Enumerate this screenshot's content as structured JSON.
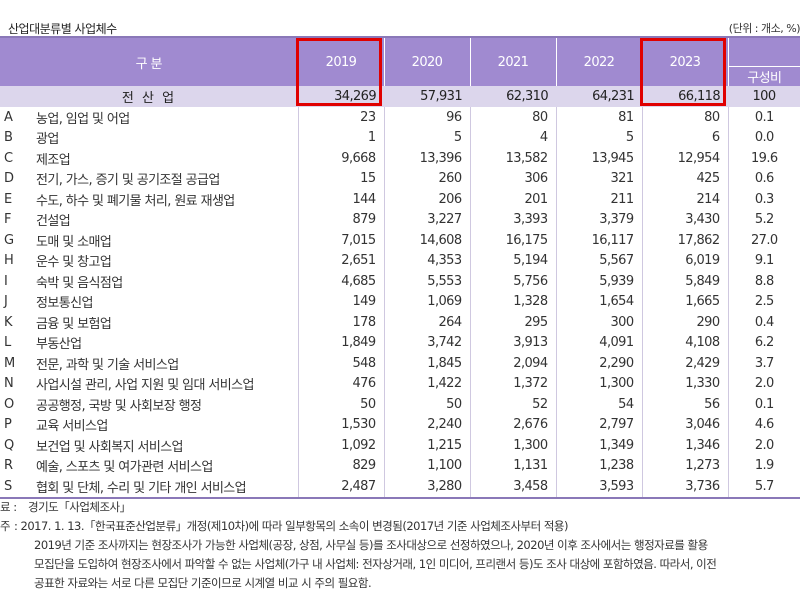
{
  "title": "산업대분류별 사업체수",
  "unit": "(단위 : 개소, %)",
  "header": {
    "category": "구 분",
    "years": [
      "2019",
      "2020",
      "2021",
      "2022",
      "2023"
    ],
    "share": "구성비"
  },
  "total": {
    "label": "전 산 업",
    "values": [
      "34,269",
      "57,931",
      "62,310",
      "64,231",
      "66,118"
    ],
    "share": "100"
  },
  "rows": [
    {
      "code": "A",
      "name": "농업, 임업 및 어업",
      "values": [
        "23",
        "96",
        "80",
        "81",
        "80"
      ],
      "share": "0.1"
    },
    {
      "code": "B",
      "name": "광업",
      "values": [
        "1",
        "5",
        "4",
        "5",
        "6"
      ],
      "share": "0.0"
    },
    {
      "code": "C",
      "name": "제조업",
      "values": [
        "9,668",
        "13,396",
        "13,582",
        "13,945",
        "12,954"
      ],
      "share": "19.6"
    },
    {
      "code": "D",
      "name": "전기, 가스, 증기 및 공기조절 공급업",
      "values": [
        "15",
        "260",
        "306",
        "321",
        "425"
      ],
      "share": "0.6"
    },
    {
      "code": "E",
      "name": "수도, 하수 및 폐기물 처리, 원료 재생업",
      "values": [
        "144",
        "206",
        "201",
        "211",
        "214"
      ],
      "share": "0.3"
    },
    {
      "code": "F",
      "name": "건설업",
      "values": [
        "879",
        "3,227",
        "3,393",
        "3,379",
        "3,430"
      ],
      "share": "5.2"
    },
    {
      "code": "G",
      "name": "도매 및 소매업",
      "values": [
        "7,015",
        "14,608",
        "16,175",
        "16,117",
        "17,862"
      ],
      "share": "27.0"
    },
    {
      "code": "H",
      "name": "운수 및 창고업",
      "values": [
        "2,651",
        "4,353",
        "5,194",
        "5,567",
        "6,019"
      ],
      "share": "9.1"
    },
    {
      "code": "I",
      "name": "숙박 및 음식점업",
      "values": [
        "4,685",
        "5,553",
        "5,756",
        "5,939",
        "5,849"
      ],
      "share": "8.8"
    },
    {
      "code": "J",
      "name": "정보통신업",
      "values": [
        "149",
        "1,069",
        "1,328",
        "1,654",
        "1,665"
      ],
      "share": "2.5"
    },
    {
      "code": "K",
      "name": "금융 및 보험업",
      "values": [
        "178",
        "264",
        "295",
        "300",
        "290"
      ],
      "share": "0.4"
    },
    {
      "code": "L",
      "name": "부동산업",
      "values": [
        "1,849",
        "3,742",
        "3,913",
        "4,091",
        "4,108"
      ],
      "share": "6.2"
    },
    {
      "code": "M",
      "name": "전문, 과학 및 기술 서비스업",
      "values": [
        "548",
        "1,845",
        "2,094",
        "2,290",
        "2,429"
      ],
      "share": "3.7"
    },
    {
      "code": "N",
      "name": "사업시설 관리, 사업 지원 및 임대 서비스업",
      "values": [
        "476",
        "1,422",
        "1,372",
        "1,300",
        "1,330"
      ],
      "share": "2.0"
    },
    {
      "code": "O",
      "name": "공공행정, 국방 및 사회보장 행정",
      "values": [
        "50",
        "50",
        "52",
        "54",
        "56"
      ],
      "share": "0.1"
    },
    {
      "code": "P",
      "name": "교육 서비스업",
      "values": [
        "1,530",
        "2,240",
        "2,676",
        "2,797",
        "3,046"
      ],
      "share": "4.6"
    },
    {
      "code": "Q",
      "name": "보건업 및 사회복지 서비스업",
      "values": [
        "1,092",
        "1,215",
        "1,300",
        "1,349",
        "1,346"
      ],
      "share": "2.0"
    },
    {
      "code": "R",
      "name": "예술, 스포츠 및 여가관련 서비스업",
      "values": [
        "829",
        "1,100",
        "1,131",
        "1,238",
        "1,273"
      ],
      "share": "1.9"
    },
    {
      "code": "S",
      "name": "협회 및 단체, 수리 및 기타 개인 서비스업",
      "values": [
        "2,487",
        "3,280",
        "3,458",
        "3,593",
        "3,736"
      ],
      "share": "5.7"
    }
  ],
  "notes": {
    "source_label": "료 :",
    "source_text": "경기도「사업체조사」",
    "note_label": "주",
    "lines": [
      ": 2017. 1. 13.「한국표준산업분류」개정(제10차)에 따라 일부항목의 소속이 변경됨(2017년 기준 사업체조사부터 적용)",
      "2019년 기준 조사까지는 현장조사가 가능한 사업체(공장, 상점, 사무실 등)를 조사대상으로 선정하였으나, 2020년 이후 조사에서는 행정자료를 활용",
      "모집단을 도입하여 현장조사에서 파악할 수 없는 사업체(가구 내 사업체: 전자상거래, 1인 미디어, 프리랜서 등)도 조사 대상에 포함하였음. 따라서, 이전",
      "공표한 자료와는 서로 다른 모집단 기준이므로 시계열 비교 시 주의 필요함."
    ]
  },
  "colors": {
    "header_bg": "#a08ad0",
    "total_bg": "#dcd6ec",
    "highlight_box": "#e00000"
  }
}
